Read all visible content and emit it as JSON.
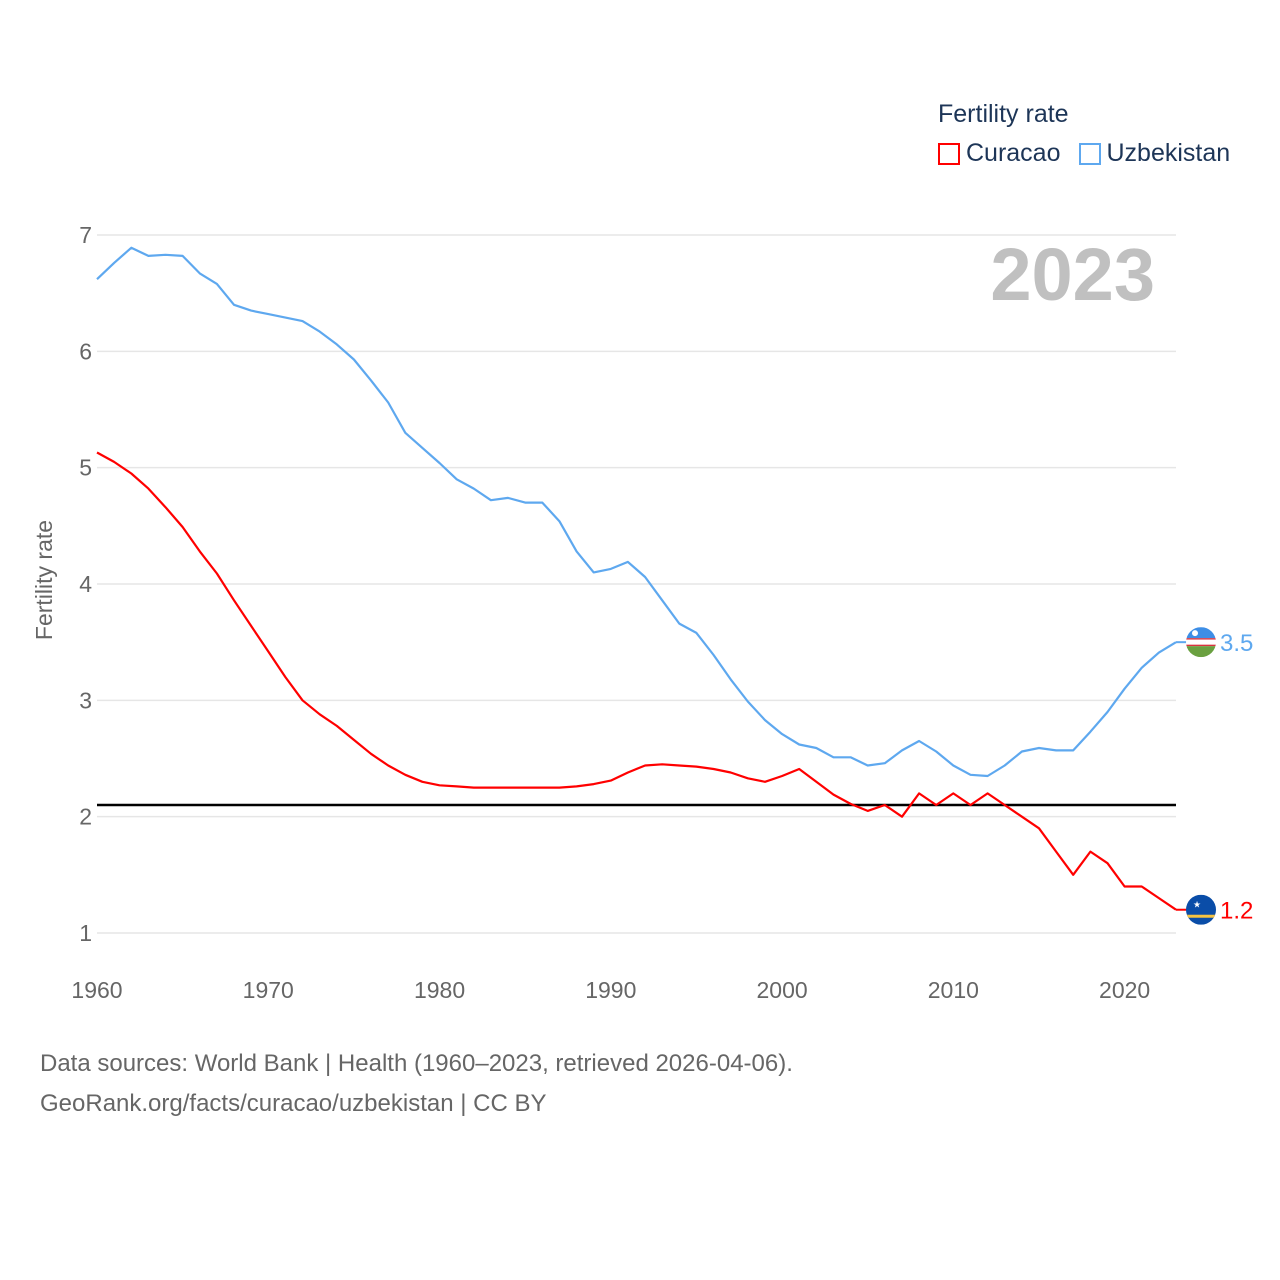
{
  "chart_data": {
    "type": "line",
    "title": "2023",
    "xlabel": "",
    "ylabel": "Fertility rate",
    "xlim": [
      1960,
      2023
    ],
    "ylim": [
      1,
      7
    ],
    "x_ticks": [
      1960,
      1970,
      1980,
      1990,
      2000,
      2010,
      2020
    ],
    "y_ticks": [
      1,
      2,
      3,
      4,
      5,
      6,
      7
    ],
    "grid": true,
    "legend": {
      "title": "Fertility rate",
      "placement": "top-right"
    },
    "reference_line": {
      "value": 2.1,
      "color": "#000000"
    },
    "x": [
      1960,
      1961,
      1962,
      1963,
      1964,
      1965,
      1966,
      1967,
      1968,
      1969,
      1970,
      1971,
      1972,
      1973,
      1974,
      1975,
      1976,
      1977,
      1978,
      1979,
      1980,
      1981,
      1982,
      1983,
      1984,
      1985,
      1986,
      1987,
      1988,
      1989,
      1990,
      1991,
      1992,
      1993,
      1994,
      1995,
      1996,
      1997,
      1998,
      1999,
      2000,
      2001,
      2002,
      2003,
      2004,
      2005,
      2006,
      2007,
      2008,
      2009,
      2010,
      2011,
      2012,
      2013,
      2014,
      2015,
      2016,
      2017,
      2018,
      2019,
      2020,
      2021,
      2022,
      2023
    ],
    "series": [
      {
        "name": "Curacao",
        "color": "#ff0000",
        "end_label": "1.2",
        "flag": "curacao-flag",
        "values": [
          5.13,
          5.05,
          4.95,
          4.82,
          4.66,
          4.49,
          4.28,
          4.09,
          3.86,
          3.64,
          3.42,
          3.2,
          3.0,
          2.88,
          2.78,
          2.66,
          2.54,
          2.44,
          2.36,
          2.3,
          2.27,
          2.26,
          2.25,
          2.25,
          2.25,
          2.25,
          2.25,
          2.25,
          2.26,
          2.28,
          2.31,
          2.38,
          2.44,
          2.45,
          2.44,
          2.43,
          2.41,
          2.38,
          2.33,
          2.3,
          2.35,
          2.41,
          2.3,
          2.19,
          2.11,
          2.05,
          2.1,
          2.0,
          2.2,
          2.1,
          2.2,
          2.1,
          2.2,
          2.1,
          2.0,
          1.9,
          1.7,
          1.5,
          1.7,
          1.6,
          1.4,
          1.4,
          1.3,
          1.2
        ]
      },
      {
        "name": "Uzbekistan",
        "color": "#5ea8ef",
        "end_label": "3.5",
        "flag": "uzbekistan-flag",
        "values": [
          6.62,
          6.76,
          6.89,
          6.82,
          6.83,
          6.82,
          6.67,
          6.58,
          6.4,
          6.35,
          6.32,
          6.29,
          6.26,
          6.17,
          6.06,
          5.93,
          5.75,
          5.56,
          5.3,
          5.17,
          5.04,
          4.9,
          4.82,
          4.72,
          4.74,
          4.7,
          4.7,
          4.54,
          4.28,
          4.1,
          4.13,
          4.19,
          4.06,
          3.86,
          3.66,
          3.58,
          3.39,
          3.18,
          2.99,
          2.83,
          2.71,
          2.62,
          2.59,
          2.51,
          2.51,
          2.44,
          2.46,
          2.57,
          2.65,
          2.56,
          2.44,
          2.36,
          2.35,
          2.44,
          2.56,
          2.59,
          2.57,
          2.57,
          2.73,
          2.9,
          3.1,
          3.28,
          3.41,
          3.5
        ]
      }
    ]
  },
  "source": {
    "line1": "Data sources: World Bank | Health (1960–2023, retrieved 2026-04-06).",
    "line2": "GeoRank.org/facts/curacao/uzbekistan | CC BY"
  }
}
